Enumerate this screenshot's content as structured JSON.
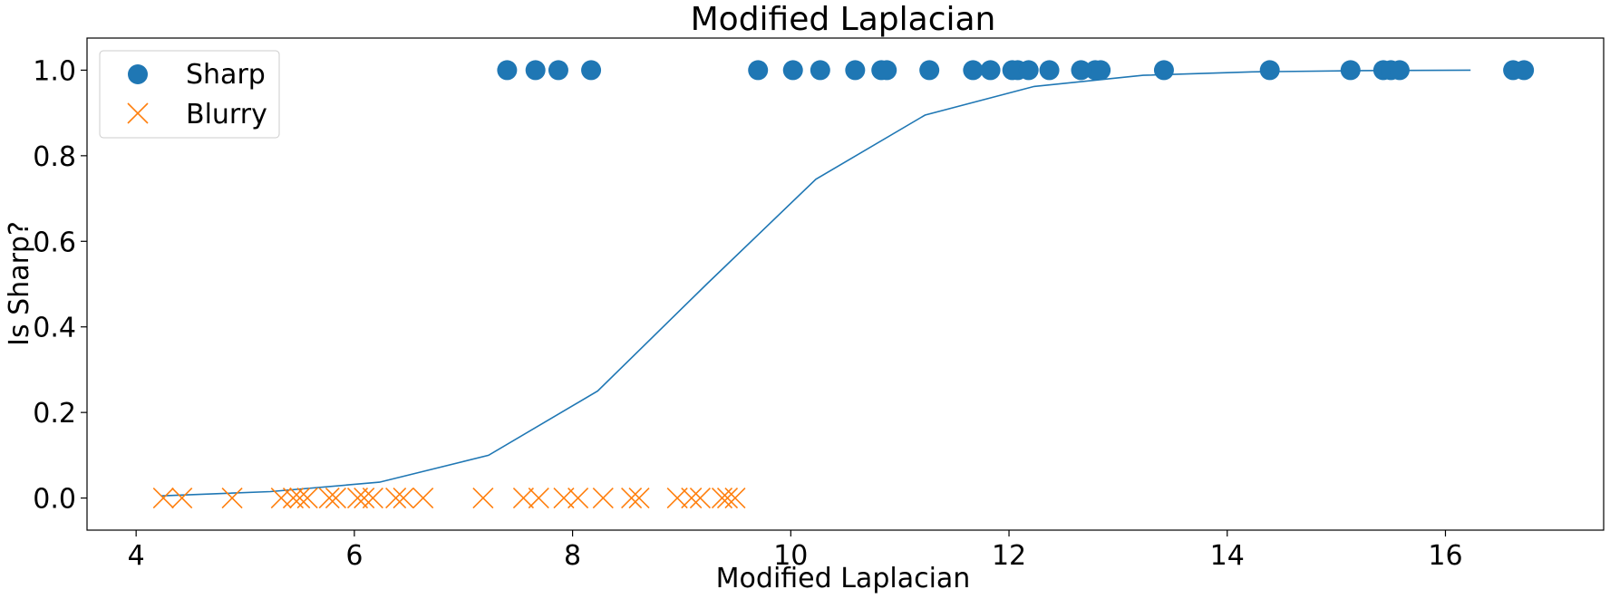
{
  "chart_data": {
    "type": "scatter",
    "title": "Modified Laplacian",
    "xlabel": "Modified Laplacian",
    "ylabel": "Is Sharp?",
    "xlim": [
      3.55,
      17.45
    ],
    "ylim": [
      -0.075,
      1.075
    ],
    "xticks": [
      4,
      6,
      8,
      10,
      12,
      14,
      16
    ],
    "xtick_labels": [
      "4",
      "6",
      "8",
      "10",
      "12",
      "14",
      "16"
    ],
    "yticks": [
      0.0,
      0.2,
      0.4,
      0.6,
      0.8,
      1.0
    ],
    "ytick_labels": [
      "0.0",
      "0.2",
      "0.4",
      "0.6",
      "0.8",
      "1.0"
    ],
    "grid": false,
    "legend_position": "top-left",
    "series": [
      {
        "name": "Sharp",
        "kind": "scatter",
        "marker": "circle",
        "color": "#1f77b4",
        "points": [
          [
            7.4,
            1
          ],
          [
            7.66,
            1
          ],
          [
            7.87,
            1
          ],
          [
            8.17,
            1
          ],
          [
            9.7,
            1
          ],
          [
            10.02,
            1
          ],
          [
            10.27,
            1
          ],
          [
            10.59,
            1
          ],
          [
            10.83,
            1
          ],
          [
            10.88,
            1
          ],
          [
            11.27,
            1
          ],
          [
            11.67,
            1
          ],
          [
            11.83,
            1
          ],
          [
            12.03,
            1
          ],
          [
            12.08,
            1
          ],
          [
            12.18,
            1
          ],
          [
            12.37,
            1
          ],
          [
            12.66,
            1
          ],
          [
            12.79,
            1
          ],
          [
            12.84,
            1
          ],
          [
            13.42,
            1
          ],
          [
            14.39,
            1
          ],
          [
            15.13,
            1
          ],
          [
            15.43,
            1
          ],
          [
            15.5,
            1
          ],
          [
            15.58,
            1
          ],
          [
            16.62,
            1
          ],
          [
            16.72,
            1
          ]
        ]
      },
      {
        "name": "Blurry",
        "kind": "scatter",
        "marker": "x",
        "color": "#ff7f0e",
        "points": [
          [
            4.25,
            0
          ],
          [
            4.42,
            0
          ],
          [
            4.88,
            0
          ],
          [
            5.33,
            0
          ],
          [
            5.44,
            0
          ],
          [
            5.5,
            0
          ],
          [
            5.57,
            0
          ],
          [
            5.77,
            0
          ],
          [
            5.83,
            0
          ],
          [
            6.03,
            0
          ],
          [
            6.09,
            0
          ],
          [
            6.17,
            0
          ],
          [
            6.38,
            0
          ],
          [
            6.45,
            0
          ],
          [
            6.63,
            0
          ],
          [
            7.18,
            0
          ],
          [
            7.55,
            0
          ],
          [
            7.69,
            0
          ],
          [
            7.92,
            0
          ],
          [
            8.05,
            0
          ],
          [
            8.28,
            0
          ],
          [
            8.54,
            0
          ],
          [
            8.61,
            0
          ],
          [
            8.96,
            0
          ],
          [
            9.09,
            0
          ],
          [
            9.17,
            0
          ],
          [
            9.37,
            0
          ],
          [
            9.42,
            0
          ],
          [
            9.49,
            0
          ]
        ]
      },
      {
        "kind": "line",
        "color": "#1f77b4",
        "points": [
          [
            4.23,
            0.005
          ],
          [
            5.23,
            0.015
          ],
          [
            6.23,
            0.037
          ],
          [
            7.23,
            0.1
          ],
          [
            8.23,
            0.25
          ],
          [
            9.23,
            0.5
          ],
          [
            10.23,
            0.745
          ],
          [
            11.23,
            0.895
          ],
          [
            12.23,
            0.962
          ],
          [
            13.23,
            0.988
          ],
          [
            14.23,
            0.996
          ],
          [
            15.23,
            0.999
          ],
          [
            16.23,
            1.0
          ]
        ]
      }
    ]
  }
}
